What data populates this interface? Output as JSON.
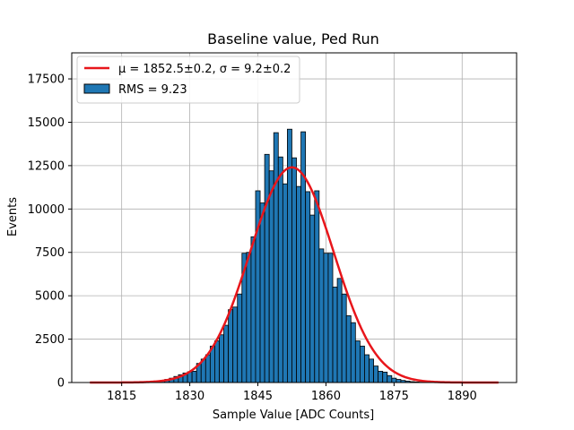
{
  "chart_data": {
    "type": "bar",
    "title": "Baseline value, Ped Run",
    "xlabel": "Sample Value [ADC Counts]",
    "ylabel": "Events",
    "xlim": [
      1804,
      1902
    ],
    "ylim": [
      0,
      19000
    ],
    "xticks": [
      1815,
      1830,
      1845,
      1860,
      1875,
      1890
    ],
    "xtick_labels": [
      "1815",
      "1830",
      "1845",
      "1860",
      "1875",
      "1890"
    ],
    "yticks": [
      0,
      2500,
      5000,
      7500,
      10000,
      12500,
      15000,
      17500
    ],
    "ytick_labels": [
      "0",
      "2500",
      "5000",
      "7500",
      "10000",
      "12500",
      "15000",
      "17500"
    ],
    "grid": true,
    "legend_position": "top-left",
    "series": [
      {
        "name": "RMS = 9.23",
        "kind": "histogram",
        "bin_width": 1,
        "color": "#1f77b4",
        "edgecolor": "#000000",
        "bins": [
          1822,
          1823,
          1824,
          1825,
          1826,
          1827,
          1828,
          1829,
          1830,
          1831,
          1832,
          1833,
          1834,
          1835,
          1836,
          1837,
          1838,
          1839,
          1840,
          1841,
          1842,
          1843,
          1844,
          1845,
          1846,
          1847,
          1848,
          1849,
          1850,
          1851,
          1852,
          1853,
          1854,
          1855,
          1856,
          1857,
          1858,
          1859,
          1860,
          1861,
          1862,
          1863,
          1864,
          1865,
          1866,
          1867,
          1868,
          1869,
          1870,
          1871,
          1872,
          1873,
          1874,
          1875,
          1876,
          1877,
          1878,
          1879,
          1880,
          1881,
          1882,
          1883
        ],
        "values": [
          50,
          80,
          120,
          180,
          250,
          350,
          450,
          550,
          620,
          650,
          1100,
          1350,
          1600,
          2100,
          2400,
          2750,
          3300,
          4200,
          4350,
          5100,
          7450,
          7500,
          8400,
          11050,
          10350,
          13150,
          12200,
          14400,
          13000,
          11450,
          14600,
          12950,
          11300,
          14450,
          11000,
          9650,
          11050,
          7700,
          7450,
          7450,
          5500,
          6000,
          5100,
          3850,
          3450,
          2400,
          2100,
          1600,
          1350,
          950,
          650,
          600,
          400,
          250,
          180,
          120,
          80,
          50,
          30,
          20,
          12,
          8
        ]
      },
      {
        "name": "μ = 1852.5±0.2, σ = 9.2±0.2",
        "kind": "gaussian_fit",
        "color": "#e8161b",
        "amplitude": 12400,
        "mu": 1852.5,
        "sigma": 9.2,
        "x_range": [
          1808,
          1898
        ]
      }
    ]
  }
}
